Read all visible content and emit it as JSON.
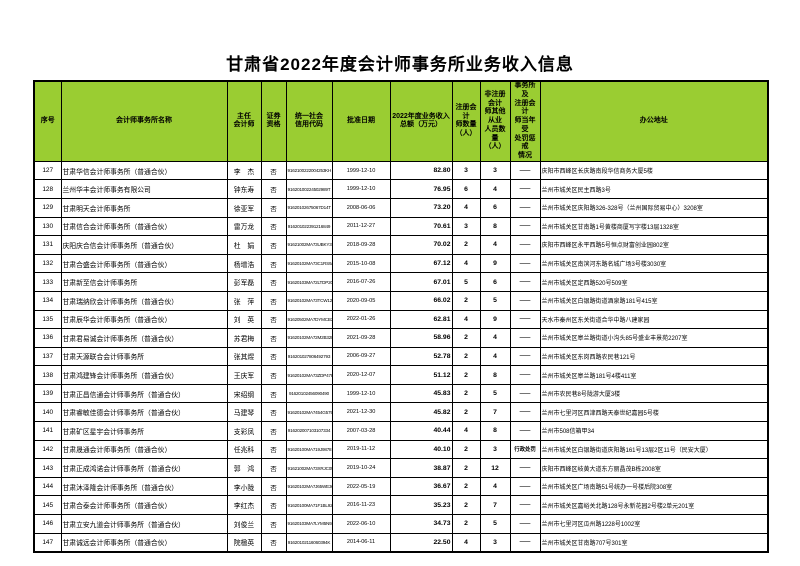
{
  "page": {
    "title": "甘肃省2022年度会计师事务所业务收入信息"
  },
  "colors": {
    "header_bg": "#9ACD32",
    "border": "#000000",
    "text": "#000000"
  },
  "table": {
    "columns": [
      {
        "key": "seq",
        "label": "序号"
      },
      {
        "key": "name",
        "label": "会计师事务所名称"
      },
      {
        "key": "chief",
        "label": "主任\n会计师"
      },
      {
        "key": "sec",
        "label": "证券\n资格"
      },
      {
        "key": "code",
        "label": "统一社会\n信用代码"
      },
      {
        "key": "date",
        "label": "批准日期"
      },
      {
        "key": "income",
        "label": "2022年度业务收入\n总额（万元）"
      },
      {
        "key": "cpa",
        "label": "注册会计\n师数量\n（人）"
      },
      {
        "key": "staff",
        "label": "非注册会计\n师其他从业\n人员数量\n（人）"
      },
      {
        "key": "pun",
        "label": "事务所及\n注册会计\n师当年受\n处罚惩戒\n情况"
      },
      {
        "key": "addr",
        "label": "办公地址"
      }
    ],
    "rows": [
      [
        "127",
        "甘肃华信会计师事务所（普通合伙）",
        "李　杰",
        "否",
        "9162100222004253KH",
        "1999-12-10",
        "82.80",
        "3",
        "3",
        "——",
        "庆阳市西峰区长庆路南段华信商务大厦5楼"
      ],
      [
        "128",
        "兰州华丰会计师事务有限公司",
        "钟东寿",
        "否",
        "91620100224502989T",
        "1999-12-10",
        "76.95",
        "6",
        "4",
        "——",
        "兰州市城关区民主西路3号"
      ],
      [
        "129",
        "甘肃明天会计师事务所",
        "徐亚军",
        "否",
        "91620102675067D14T",
        "2008-06-06",
        "73.20",
        "4",
        "6",
        "——",
        "兰州市城关区庆阳路326-328号（兰州国际贸易中心）3208室"
      ],
      [
        "130",
        "甘肃信合会计师事务所（普通合伙）",
        "雷万龙",
        "否",
        "916201022391216849",
        "2011-12-27",
        "70.61",
        "3",
        "8",
        "——",
        "兰州市城关区甘南路1号黄楼商厦写字楼13层1328室"
      ],
      [
        "131",
        "庆阳庆合信会计师事务所（普通合伙）",
        "杜　娟",
        "否",
        "91621002MA73UBKY3B",
        "2018-09-28",
        "70.02",
        "2",
        "4",
        "——",
        "庆阳市西峰区永平西路5号恒点财富创业园802室"
      ],
      [
        "132",
        "甘肃合盛会计师事务所（普通合伙）",
        "杨增浩",
        "否",
        "91620102MA73C1RS9A",
        "2015-10-08",
        "67.12",
        "4",
        "9",
        "——",
        "兰州市城关区南滨河东路名城广场3号楼3030室"
      ],
      [
        "133",
        "甘肃新至信会计师事务所",
        "彭军磊",
        "否",
        "91620103MA72LTDP20",
        "2016-07-26",
        "67.01",
        "5",
        "6",
        "——",
        "兰州市城关区定西路520号509室"
      ],
      [
        "134",
        "甘肃瑞纳欣会计师事务所（普通合伙）",
        "张　萍",
        "否",
        "91620102MA73TCW120",
        "2020-09-05",
        "66.02",
        "2",
        "5",
        "——",
        "兰州市城关区白银路街道酒泉路181号415室"
      ],
      [
        "135",
        "甘肃辰华会计师事务所（普通合伙）",
        "刘　英",
        "否",
        "91620502MA7DYMCB3A",
        "2022-01-26",
        "62.81",
        "4",
        "9",
        "——",
        "天水市秦州区东关街道合华中路八建家园"
      ],
      [
        "136",
        "甘肃君易诚会计师事务所（普通合伙）",
        "苏君梅",
        "否",
        "91620102MA72M2B328",
        "2021-09-28",
        "58.96",
        "2",
        "4",
        "——",
        "兰州市城关区皋兰路街道小沟头85号盛业丰景苑2207室"
      ],
      [
        "137",
        "甘肃天源联合会计师事务所",
        "张其煜",
        "否",
        "916201027806492793",
        "2006-09-27",
        "52.78",
        "2",
        "4",
        "——",
        "兰州市城关区东岗西路农民巷121号"
      ],
      [
        "138",
        "甘肃鸿建锋会计师事务所（普通合伙）",
        "王庆军",
        "否",
        "91620102MA73ZDP478",
        "2020-12-07",
        "51.12",
        "2",
        "8",
        "——",
        "兰州市城关区皋兰路181号4楼411室"
      ],
      [
        "139",
        "甘肃正昌信通会计师事务所（普通合伙）",
        "宋绍纲",
        "否",
        "91620102456090490",
        "1999-12-10",
        "45.83",
        "2",
        "5",
        "——",
        "兰州市农民巷8号陇游大厦3楼"
      ],
      [
        "140",
        "甘肃睿敏佳德会计师事务所（普通合伙）",
        "马建琴",
        "否",
        "91620102MA7454G579",
        "2021-12-30",
        "45.82",
        "2",
        "7",
        "——",
        "兰州市七里河区西津西路天泰世纪嘉园5号楼"
      ],
      [
        "141",
        "甘肃矿区星宇会计师事务所",
        "支彩凤",
        "否",
        "916202007103107334",
        "2007-03-28",
        "40.44",
        "4",
        "8",
        "——",
        "兰州市508信箱甲34"
      ],
      [
        "142",
        "甘肃晟通会计师事务所（普通合伙）",
        "任兆科",
        "否",
        "91620100MA719J9878",
        "2019-11-12",
        "40.10",
        "2",
        "3",
        "行政处罚",
        "兰州市城关区白银路街道庆阳路161号13层2区11号（民安大厦）"
      ],
      [
        "143",
        "甘肃正成鸿诺会计师事务所（普通合伙）",
        "郭　鸿",
        "否",
        "91621002MA73XRJC05",
        "2019-10-24",
        "38.87",
        "2",
        "12",
        "——",
        "庆阳市西峰区岐黄大道东方丽晶茂B栋2008室"
      ],
      [
        "144",
        "甘肃沐泽隆会计师事务所（普通合伙）",
        "李小陇",
        "否",
        "91620102MA7J65WE36",
        "2022-05-19",
        "36.67",
        "2",
        "4",
        "——",
        "兰州市城关区广场南路51号统办一号楼后院308室"
      ],
      [
        "145",
        "甘肃合泰会计师事务所（普通合伙）",
        "李红杰",
        "否",
        "91620100MA71F1BL92",
        "2016-11-23",
        "35.23",
        "2",
        "7",
        "——",
        "兰州市城关区嘉峪关北路128号永新花园2号楼2单元201室"
      ],
      [
        "146",
        "甘肃立安九道会计师事务所（普通合伙）",
        "刘俊兰",
        "否",
        "91620103MA7LYM5N92",
        "2022-06-10",
        "34.73",
        "2",
        "5",
        "——",
        "兰州市七里河区瓜州路1228号1002室"
      ],
      [
        "147",
        "甘肃诚远会计师事务所（普通合伙）",
        "院楹英",
        "否",
        "91620102116060394K",
        "2014-06-11",
        "22.50",
        "4",
        "3",
        "——",
        "兰州市城关区甘南路707号301室"
      ]
    ]
  }
}
